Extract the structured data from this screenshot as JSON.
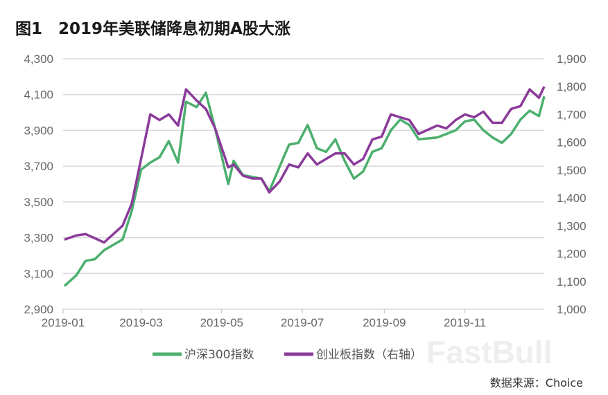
{
  "title": "图1　2019年美联储降息初期A股大涨",
  "source": "数据来源：Choice",
  "watermark": "FastBull",
  "chart_data": {
    "type": "line",
    "title": "图1　2019年美联储降息初期A股大涨",
    "x_ticks": [
      "2019-01",
      "2019-03",
      "2019-05",
      "2019-07",
      "2019-09",
      "2019-11"
    ],
    "y_left": {
      "ticks": [
        "2,900",
        "3,100",
        "3,300",
        "3,500",
        "3,700",
        "3,900",
        "4,100",
        "4,300"
      ],
      "range": [
        2900,
        4300
      ]
    },
    "y_right": {
      "ticks": [
        "1,000",
        "1,100",
        "1,200",
        "1,300",
        "1,400",
        "1,500",
        "1,600",
        "1,700",
        "1,800",
        "1,900"
      ],
      "range": [
        1000,
        1900
      ]
    },
    "x_range": [
      "2019-01-01",
      "2019-12-31"
    ],
    "grid": "horizontal",
    "legend_position": "bottom",
    "x": [
      "2019-01-02",
      "2019-01-11",
      "2019-01-18",
      "2019-01-25",
      "2019-02-01",
      "2019-02-15",
      "2019-02-22",
      "2019-03-01",
      "2019-03-08",
      "2019-03-15",
      "2019-03-22",
      "2019-03-29",
      "2019-04-04",
      "2019-04-12",
      "2019-04-19",
      "2019-04-26",
      "2019-05-06",
      "2019-05-10",
      "2019-05-17",
      "2019-05-24",
      "2019-05-31",
      "2019-06-06",
      "2019-06-14",
      "2019-06-21",
      "2019-06-28",
      "2019-07-05",
      "2019-07-12",
      "2019-07-19",
      "2019-07-26",
      "2019-08-02",
      "2019-08-09",
      "2019-08-16",
      "2019-08-23",
      "2019-08-30",
      "2019-09-06",
      "2019-09-13",
      "2019-09-20",
      "2019-09-27",
      "2019-10-11",
      "2019-10-18",
      "2019-10-25",
      "2019-11-01",
      "2019-11-08",
      "2019-11-15",
      "2019-11-22",
      "2019-11-29",
      "2019-12-06",
      "2019-12-13",
      "2019-12-20",
      "2019-12-27",
      "2019-12-31"
    ],
    "series": [
      {
        "name": "沪深300指数",
        "axis": "left",
        "color": "#4caf6e",
        "values": [
          3030,
          3090,
          3170,
          3180,
          3230,
          3290,
          3450,
          3680,
          3720,
          3750,
          3840,
          3720,
          4060,
          4030,
          4110,
          3910,
          3600,
          3730,
          3650,
          3640,
          3630,
          3560,
          3700,
          3820,
          3830,
          3930,
          3800,
          3780,
          3850,
          3730,
          3630,
          3670,
          3780,
          3800,
          3900,
          3960,
          3930,
          3850,
          3860,
          3880,
          3900,
          3950,
          3960,
          3900,
          3860,
          3830,
          3880,
          3960,
          4010,
          3980,
          4090
        ]
      },
      {
        "name": "创业板指数（右轴）",
        "axis": "right",
        "color": "#8b3a9a",
        "values": [
          1250,
          1265,
          1270,
          1255,
          1240,
          1300,
          1380,
          1540,
          1700,
          1680,
          1700,
          1660,
          1790,
          1750,
          1720,
          1650,
          1510,
          1520,
          1480,
          1470,
          1470,
          1420,
          1460,
          1520,
          1510,
          1560,
          1520,
          1540,
          1560,
          1560,
          1520,
          1540,
          1610,
          1620,
          1700,
          1690,
          1680,
          1630,
          1660,
          1650,
          1680,
          1700,
          1690,
          1710,
          1670,
          1670,
          1720,
          1730,
          1790,
          1760,
          1800
        ]
      }
    ]
  }
}
